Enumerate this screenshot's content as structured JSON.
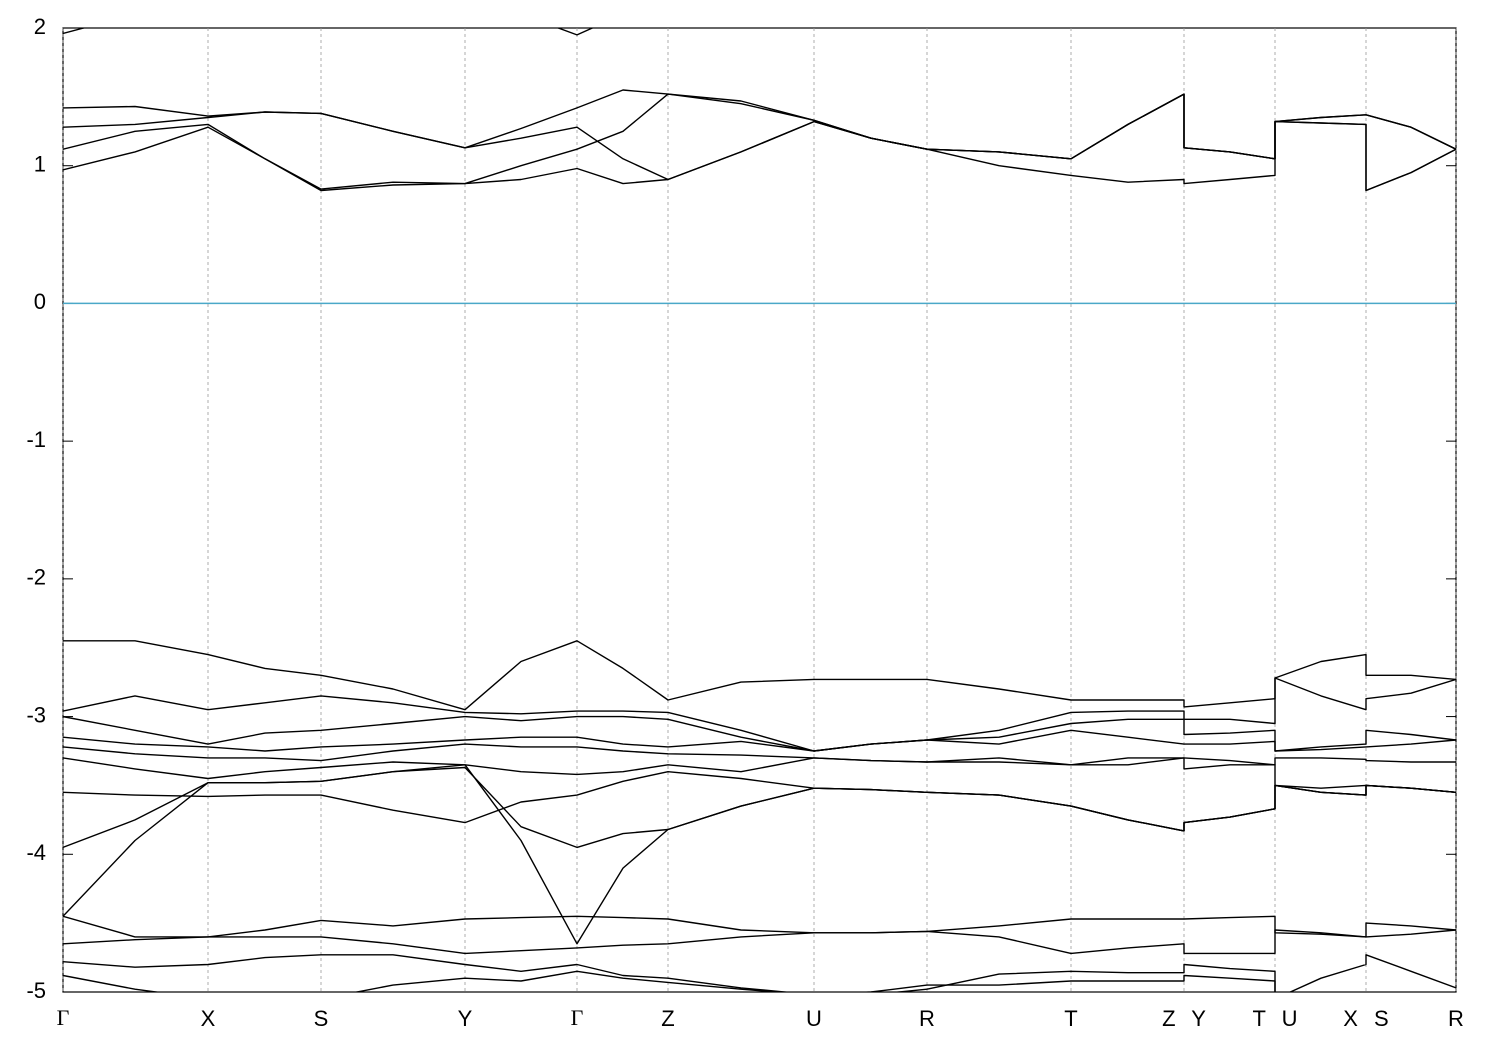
{
  "chart_data": {
    "type": "line",
    "x": [
      0,
      0.72,
      1.45,
      2.02,
      2.58,
      3.3,
      4.02,
      4.58,
      5.14,
      5.6,
      6.05,
      6.78,
      7.51,
      8.08,
      8.64,
      9.36,
      10.08,
      10.65,
      11.21,
      11.21,
      11.67,
      12.12,
      12.12,
      12.58,
      13.03,
      13.03,
      13.48,
      13.93
    ],
    "xlim": [
      0,
      13.93
    ],
    "xticks": [
      {
        "value": 0,
        "label": "Γ"
      },
      {
        "value": 1.45,
        "label": "X"
      },
      {
        "value": 2.58,
        "label": "S"
      },
      {
        "value": 4.02,
        "label": "Y"
      },
      {
        "value": 5.14,
        "label": "Γ"
      },
      {
        "value": 6.05,
        "label": "Z"
      },
      {
        "value": 7.51,
        "label": "U"
      },
      {
        "value": 8.64,
        "label": "R"
      },
      {
        "value": 10.08,
        "label": "T"
      },
      {
        "value": 11.21,
        "label": "Z Y"
      },
      {
        "value": 12.12,
        "label": "T U"
      },
      {
        "value": 13.03,
        "label": "X S"
      },
      {
        "value": 13.93,
        "label": "R"
      }
    ],
    "ylim": [
      -5,
      2
    ],
    "yticks": [
      -5,
      -4,
      -3,
      -2,
      -1,
      0,
      1,
      2
    ],
    "grid": "x",
    "color": "#000000",
    "hline": 0,
    "hline_color": "#4aa8c8",
    "series": [
      {
        "values": [
          0.97,
          1.1,
          1.28,
          1.05,
          0.82,
          0.86,
          0.87,
          0.9,
          0.98,
          0.87,
          0.9,
          1.1,
          1.32,
          1.2,
          1.12,
          1.0,
          0.93,
          0.88,
          0.9,
          0.87,
          0.9,
          0.93,
          1.32,
          1.31,
          1.3,
          0.82,
          0.95,
          1.12
        ]
      },
      {
        "values": [
          1.12,
          1.25,
          1.3,
          1.05,
          0.83,
          0.88,
          0.87,
          1.0,
          1.12,
          1.25,
          1.52,
          1.45,
          1.33,
          1.2,
          1.12,
          1.1,
          1.05,
          1.3,
          1.52,
          1.13,
          1.1,
          1.05,
          1.32,
          1.35,
          1.37,
          1.37,
          1.28,
          1.12
        ]
      },
      {
        "values": [
          1.28,
          1.3,
          1.35,
          1.39,
          1.38,
          1.25,
          1.13,
          1.2,
          1.28,
          1.05,
          0.9,
          1.1,
          1.32,
          1.2,
          1.12,
          1.1,
          1.05,
          1.3,
          1.52,
          1.13,
          1.1,
          1.05,
          1.32,
          1.31,
          1.3,
          0.82,
          0.95,
          1.12
        ]
      },
      {
        "values": [
          1.42,
          1.43,
          1.36,
          1.39,
          1.38,
          1.25,
          1.13,
          1.27,
          1.42,
          1.55,
          1.52,
          1.47,
          1.33,
          1.2,
          1.12,
          1.1,
          1.05,
          1.3,
          1.52,
          1.13,
          1.1,
          1.05,
          1.32,
          1.35,
          1.37,
          1.37,
          1.28,
          1.12
        ]
      },
      {
        "values": [
          1.96,
          2.1,
          null,
          null,
          null,
          null,
          null,
          2.1,
          1.95,
          2.1,
          null,
          null,
          null,
          null,
          null,
          null,
          null,
          null,
          null,
          null,
          null,
          null,
          null,
          null,
          null,
          null,
          null,
          null
        ]
      },
      {
        "values": [
          -2.45,
          -2.45,
          -2.55,
          -2.65,
          -2.7,
          -2.8,
          -2.95,
          -2.6,
          -2.45,
          -2.65,
          -2.88,
          -2.75,
          -2.73,
          -2.73,
          -2.73,
          -2.8,
          -2.88,
          -2.88,
          -2.88,
          -2.93,
          -2.9,
          -2.87,
          -2.72,
          -2.6,
          -2.55,
          -2.7,
          -2.7,
          -2.73
        ]
      },
      {
        "values": [
          -2.96,
          -2.85,
          -2.95,
          -2.9,
          -2.85,
          -2.9,
          -2.97,
          -2.98,
          -2.96,
          -2.96,
          -2.97,
          -3.1,
          -3.25,
          -3.2,
          -3.17,
          -3.1,
          -2.97,
          -2.96,
          -2.96,
          -3.02,
          -3.02,
          -3.05,
          -2.72,
          -2.85,
          -2.95,
          -2.87,
          -2.83,
          -2.73
        ]
      },
      {
        "values": [
          -3.0,
          -3.1,
          -3.2,
          -3.12,
          -3.1,
          -3.05,
          -3.0,
          -3.03,
          -3.0,
          -3.0,
          -3.02,
          -3.15,
          -3.25,
          -3.2,
          -3.17,
          -3.15,
          -3.05,
          -3.02,
          -3.02,
          -3.13,
          -3.12,
          -3.1,
          -3.25,
          -3.22,
          -3.2,
          -3.1,
          -3.13,
          -3.17
        ]
      },
      {
        "values": [
          -3.15,
          -3.2,
          -3.22,
          -3.25,
          -3.22,
          -3.2,
          -3.17,
          -3.15,
          -3.15,
          -3.2,
          -3.22,
          -3.18,
          -3.25,
          -3.2,
          -3.17,
          -3.2,
          -3.1,
          -3.15,
          -3.2,
          -3.2,
          -3.2,
          -3.18,
          -3.25,
          -3.24,
          -3.22,
          -3.22,
          -3.2,
          -3.17
        ]
      },
      {
        "values": [
          -3.22,
          -3.27,
          -3.3,
          -3.3,
          -3.32,
          -3.25,
          -3.2,
          -3.22,
          -3.22,
          -3.25,
          -3.27,
          -3.28,
          -3.3,
          -3.32,
          -3.33,
          -3.3,
          -3.35,
          -3.3,
          -3.3,
          -3.3,
          -3.32,
          -3.35,
          -3.3,
          -3.3,
          -3.31,
          -3.32,
          -3.33,
          -3.33
        ]
      },
      {
        "values": [
          -3.3,
          -3.38,
          -3.45,
          -3.4,
          -3.37,
          -3.33,
          -3.35,
          -3.4,
          -3.42,
          -3.4,
          -3.35,
          -3.4,
          -3.3,
          -3.32,
          -3.33,
          -3.33,
          -3.35,
          -3.35,
          -3.3,
          -3.38,
          -3.35,
          -3.35,
          -3.5,
          -3.52,
          -3.5,
          -3.5,
          -3.52,
          -3.55
        ]
      },
      {
        "values": [
          -3.55,
          -3.57,
          -3.58,
          -3.57,
          -3.57,
          -3.68,
          -3.77,
          -3.62,
          -3.57,
          -3.47,
          -3.4,
          -3.45,
          -3.52,
          -3.53,
          -3.55,
          -3.57,
          -3.65,
          -3.75,
          -3.83,
          -3.77,
          -3.73,
          -3.67,
          -3.5,
          -3.55,
          -3.57,
          -3.5,
          -3.52,
          -3.55
        ]
      },
      {
        "values": [
          -3.95,
          -3.75,
          -3.48,
          -3.48,
          -3.47,
          -3.4,
          -3.37,
          -3.8,
          -3.95,
          -3.85,
          -3.82,
          -3.65,
          -3.52,
          -3.53,
          -3.55,
          -3.57,
          -3.65,
          -3.75,
          -3.83,
          -3.77,
          -3.73,
          -3.67,
          -3.5,
          -3.55,
          -3.57,
          -3.5,
          -3.52,
          -3.55
        ]
      },
      {
        "values": [
          -4.45,
          -3.9,
          -3.48,
          -3.48,
          -3.47,
          -3.4,
          -3.35,
          -3.9,
          -4.65,
          -4.1,
          -3.82,
          -3.65,
          -3.52,
          -3.53,
          -3.55,
          -3.57,
          -3.65,
          -3.75,
          -3.83,
          -3.77,
          -3.73,
          -3.67,
          -3.5,
          -3.55,
          -3.57,
          -3.5,
          -3.52,
          -3.55
        ]
      },
      {
        "values": [
          -4.45,
          -4.6,
          -4.6,
          -4.55,
          -4.48,
          -4.52,
          -4.47,
          -4.46,
          -4.45,
          -4.46,
          -4.47,
          -4.55,
          -4.57,
          -4.57,
          -4.56,
          -4.52,
          -4.47,
          -4.47,
          -4.47,
          -4.47,
          -4.46,
          -4.45,
          -4.57,
          -4.58,
          -4.6,
          -4.5,
          -4.52,
          -4.55
        ]
      },
      {
        "values": [
          -4.65,
          -4.62,
          -4.6,
          -4.6,
          -4.6,
          -4.65,
          -4.72,
          -4.7,
          -4.68,
          -4.66,
          -4.65,
          -4.6,
          -4.57,
          -4.57,
          -4.56,
          -4.6,
          -4.72,
          -4.68,
          -4.65,
          -4.72,
          -4.72,
          -4.72,
          -4.55,
          -4.57,
          -4.6,
          -4.6,
          -4.58,
          -4.55
        ]
      },
      {
        "values": [
          -4.78,
          -4.82,
          -4.8,
          -4.75,
          -4.73,
          -4.73,
          -4.8,
          -4.85,
          -4.8,
          -4.88,
          -4.9,
          -4.97,
          -5.02,
          -5.02,
          -4.98,
          -4.87,
          -4.85,
          -4.86,
          -4.86,
          -4.8,
          -4.83,
          -4.85,
          -5.05,
          -4.9,
          -4.8,
          -4.73,
          -4.85,
          -4.97
        ]
      },
      {
        "values": [
          -4.88,
          -4.98,
          -5.05,
          -5.05,
          -5.05,
          -4.95,
          -4.9,
          -4.92,
          -4.85,
          -4.9,
          -4.93,
          -4.98,
          -5.02,
          -5.0,
          -4.95,
          -4.95,
          -4.92,
          -4.92,
          -4.92,
          -4.88,
          -4.9,
          -4.92,
          -5.1,
          -5.1,
          -5.1,
          -5.1,
          -5.1,
          -5.1
        ]
      }
    ]
  }
}
